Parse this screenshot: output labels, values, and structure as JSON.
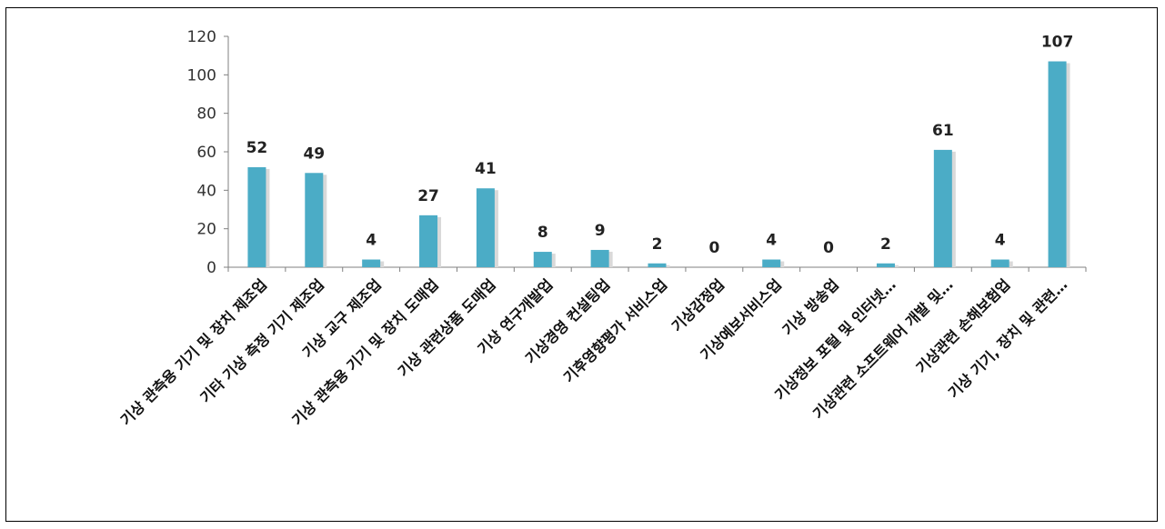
{
  "chart_data": {
    "type": "bar",
    "categories": [
      "기상 관측용 기기 및 장치 제조업",
      "기타 기상 측정 기기 제조업",
      "기상 교구 제조업",
      "기상 관측용 기기 및 장치 도매업",
      "기상 관련상품 도매업",
      "기상 연구개발업",
      "기상경영 컨설팅업",
      "기후영향평가 서비스업",
      "기상감정업",
      "기상예보서비스업",
      "기상 방송업",
      "기상정보 포털 및 인터넷…",
      "기상관련 소프트웨어 개발 및…",
      "기상관련 손해보험업",
      "기상 기기, 장치 및 관련…"
    ],
    "values": [
      52,
      49,
      4,
      27,
      41,
      8,
      9,
      2,
      0,
      4,
      0,
      2,
      61,
      4,
      107
    ],
    "data_labels": [
      "52",
      "49",
      "4",
      "27",
      "41",
      "8",
      "9",
      "2",
      "0",
      "4",
      "0",
      "2",
      "61",
      "4",
      "107"
    ],
    "yticks": [
      "0",
      "20",
      "40",
      "60",
      "80",
      "100",
      "120"
    ],
    "ylim": [
      0,
      120
    ],
    "grid": false,
    "legend": "none",
    "title": "",
    "xlabel": "",
    "ylabel": "",
    "colors": {
      "bar": "#4bacc6",
      "bar_shadow": "#d9d9d9",
      "axis": "#808080"
    }
  }
}
